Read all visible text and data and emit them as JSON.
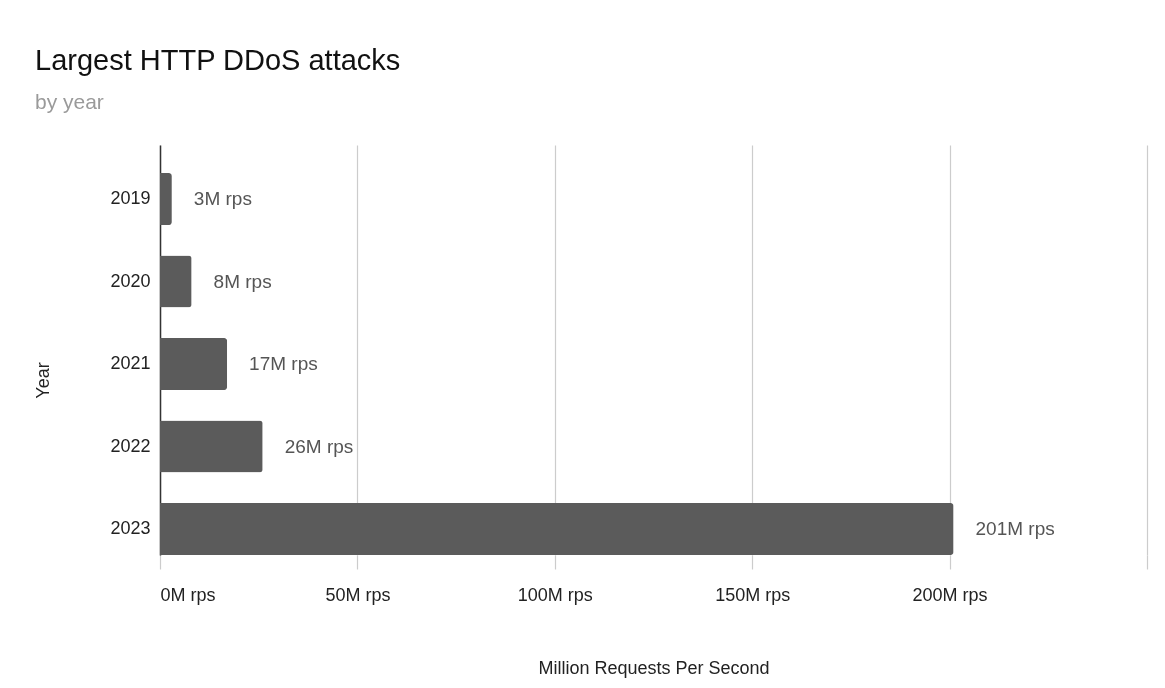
{
  "chart_data": {
    "type": "bar",
    "orientation": "horizontal",
    "title": "Largest HTTP DDoS attacks",
    "subtitle": "by year",
    "xlabel": "Million Requests Per Second",
    "ylabel": "Year",
    "categories": [
      "2019",
      "2020",
      "2021",
      "2022",
      "2023"
    ],
    "values": [
      3,
      8,
      17,
      26,
      201
    ],
    "color": "#5b5b5b",
    "value_labels": [
      "3M rps",
      "8M rps",
      "17M rps",
      "26M rps",
      "201M rps"
    ],
    "xlim": [
      0,
      250
    ],
    "xticks": [
      {
        "value": 0,
        "label": "0M rps"
      },
      {
        "value": 50,
        "label": "50M rps"
      },
      {
        "value": 100,
        "label": "100M rps"
      },
      {
        "value": 150,
        "label": "150M rps"
      },
      {
        "value": 200,
        "label": "200M rps"
      },
      {
        "value": 250,
        "label": null
      }
    ],
    "grid": "x"
  }
}
